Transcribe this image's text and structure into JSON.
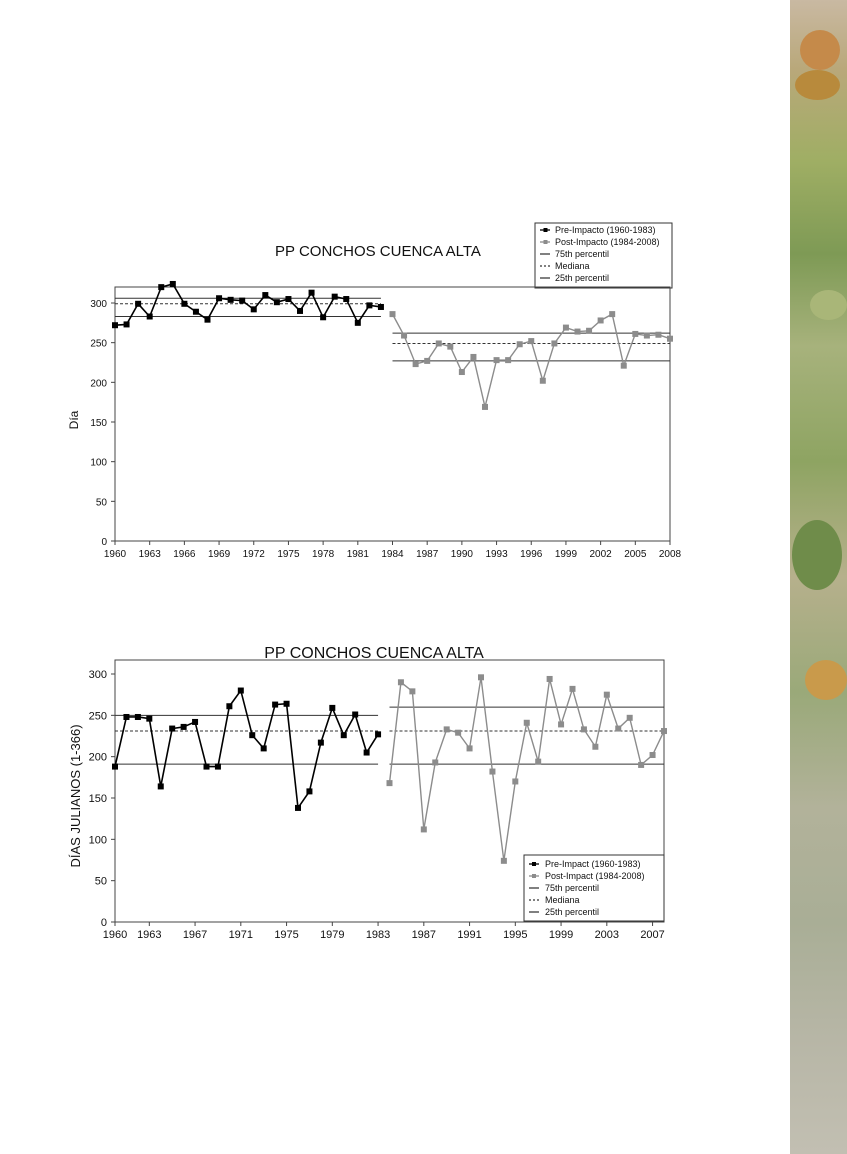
{
  "chart_data": [
    {
      "type": "line",
      "title": "PP CONCHOS CUENCA ALTA",
      "ylabel": "Día",
      "xlabel": "",
      "ylim": [
        0,
        300
      ],
      "yticks": [
        0,
        50,
        100,
        150,
        200,
        250,
        300
      ],
      "xtick_labels": [
        "1960",
        "1963",
        "1966",
        "1969",
        "1972",
        "1975",
        "1978",
        "1981",
        "1984",
        "1987",
        "1990",
        "1993",
        "1996",
        "1999",
        "2002",
        "2005",
        "2008"
      ],
      "legend_position": "top-right",
      "legend": [
        "Pre-Impacto (1960-1983)",
        "Post-Impacto (1984-2008)",
        "75th percentil",
        "Mediana",
        "25th percentil"
      ],
      "colors": {
        "pre": "#000000",
        "post": "#8c8c8c"
      },
      "series": [
        {
          "name": "Pre-Impacto (1960-1983)",
          "x": [
            1960,
            1961,
            1962,
            1963,
            1964,
            1965,
            1966,
            1967,
            1968,
            1969,
            1970,
            1971,
            1972,
            1973,
            1974,
            1975,
            1976,
            1977,
            1978,
            1979,
            1980,
            1981,
            1982,
            1983
          ],
          "values": [
            272,
            273,
            299,
            283,
            320,
            324,
            299,
            289,
            279,
            306,
            304,
            303,
            292,
            310,
            301,
            305,
            290,
            313,
            282,
            308,
            305,
            275,
            297,
            295
          ]
        },
        {
          "name": "Post-Impacto (1984-2008)",
          "x": [
            1984,
            1985,
            1986,
            1987,
            1988,
            1989,
            1990,
            1991,
            1992,
            1993,
            1994,
            1995,
            1996,
            1997,
            1998,
            1999,
            2000,
            2001,
            2002,
            2003,
            2004,
            2005,
            2006,
            2007,
            2008
          ],
          "values": [
            286,
            259,
            223,
            227,
            249,
            245,
            213,
            232,
            169,
            228,
            228,
            248,
            252,
            202,
            249,
            269,
            264,
            265,
            278,
            286,
            221,
            261,
            259,
            260,
            255
          ]
        }
      ],
      "reference_lines": {
        "pre": {
          "p75": 306,
          "median": 299,
          "p25": 283
        },
        "post": {
          "p75": 262,
          "median": 249,
          "p25": 227
        }
      }
    },
    {
      "type": "line",
      "title": "PP CONCHOS CUENCA ALTA",
      "ylabel": "DÍAS JULIANOS (1-366)",
      "xlabel": "",
      "ylim": [
        0,
        300
      ],
      "yticks": [
        0,
        50,
        100,
        150,
        200,
        250,
        300
      ],
      "xtick_labels": [
        "1960",
        "1963",
        "1967",
        "1971",
        "1975",
        "1979",
        "1983",
        "1987",
        "1991",
        "1995",
        "1999",
        "2003",
        "2007"
      ],
      "legend_position": "bottom-right",
      "legend": [
        "Pre-Impact (1960-1983)",
        "Post-Impact (1984-2008)",
        "75th percentil",
        "Mediana",
        "25th percentil"
      ],
      "colors": {
        "pre": "#000000",
        "post": "#8c8c8c"
      },
      "series": [
        {
          "name": "Pre-Impact (1960-1983)",
          "x": [
            1960,
            1961,
            1962,
            1963,
            1964,
            1965,
            1966,
            1967,
            1968,
            1969,
            1970,
            1971,
            1972,
            1973,
            1974,
            1975,
            1976,
            1977,
            1978,
            1979,
            1980,
            1981,
            1982,
            1983
          ],
          "values": [
            188,
            248,
            248,
            246,
            164,
            234,
            236,
            242,
            188,
            188,
            261,
            280,
            226,
            210,
            263,
            264,
            138,
            158,
            217,
            259,
            226,
            251,
            205,
            227
          ]
        },
        {
          "name": "Post-Impact (1984-2008)",
          "x": [
            1984,
            1985,
            1986,
            1987,
            1988,
            1989,
            1990,
            1991,
            1992,
            1993,
            1994,
            1995,
            1996,
            1997,
            1998,
            1999,
            2000,
            2001,
            2002,
            2003,
            2004,
            2005,
            2006,
            2007,
            2008
          ],
          "values": [
            168,
            290,
            279,
            112,
            193,
            233,
            229,
            210,
            296,
            182,
            74,
            170,
            241,
            194,
            294,
            239,
            282,
            233,
            212,
            275,
            234,
            247,
            190,
            202,
            231
          ]
        }
      ],
      "reference_lines": {
        "pre": {
          "p75": 250,
          "median": 231,
          "p25": 191
        },
        "post": {
          "p75": 260,
          "median": 231,
          "p25": 191
        }
      }
    }
  ]
}
